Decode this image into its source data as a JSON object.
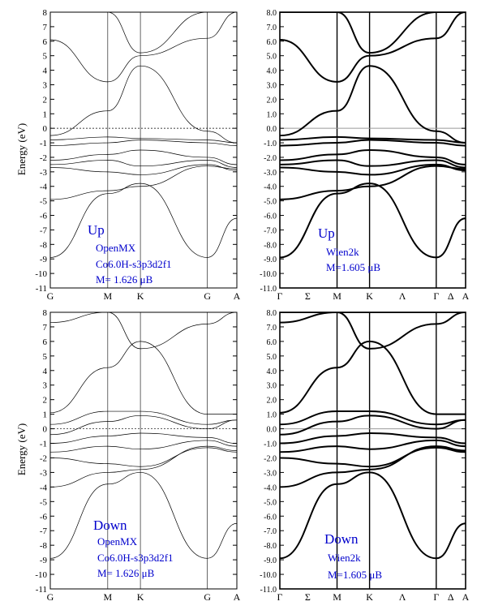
{
  "figure": {
    "ylabel": "Energy (eV)",
    "panels": [
      {
        "id": "openmx-up",
        "style": "openmx",
        "yticks": [
          "-11",
          "-10",
          "-9",
          "-8",
          "-7",
          "-6",
          "-5",
          "-4",
          "-3",
          "-2",
          "-1",
          "0",
          "1",
          "2",
          "3",
          "4",
          "5",
          "6",
          "7",
          "8"
        ],
        "xticks": [
          "G",
          "M",
          "K",
          "G",
          "A"
        ],
        "xtick_pos": [
          0,
          0.308,
          0.483,
          0.842,
          1.0
        ],
        "annotations": [
          "Up",
          "OpenMX",
          "Co6.0H-s3p3d2f1",
          "M= 1.626 μB"
        ]
      },
      {
        "id": "wien2k-up",
        "style": "wien2k",
        "yticks": [
          "-11.0",
          "-10.0",
          "-9.0",
          "-8.0",
          "-7.0",
          "-6.0",
          "-5.0",
          "-4.0",
          "-3.0",
          "-2.0",
          "-1.0",
          "0.0",
          "1.0",
          "2.0",
          "3.0",
          "4.0",
          "5.0",
          "6.0",
          "7.0",
          "8.0"
        ],
        "xticks": [
          "Γ",
          "Σ",
          "M",
          "K",
          "Λ",
          "Γ",
          "Δ",
          "A"
        ],
        "xtick_pos": [
          0,
          0.15,
          0.308,
          0.483,
          0.66,
          0.842,
          0.92,
          1.0
        ],
        "annotations": [
          "Up",
          "Wien2k",
          "M=1.605 μB"
        ]
      },
      {
        "id": "openmx-down",
        "style": "openmx",
        "yticks": [
          "-11",
          "-10",
          "-9",
          "-8",
          "-7",
          "-6",
          "-5",
          "-4",
          "-3",
          "-2",
          "-1",
          "0",
          "1",
          "2",
          "3",
          "4",
          "5",
          "6",
          "7",
          "8"
        ],
        "xticks": [
          "G",
          "M",
          "K",
          "G",
          "A"
        ],
        "xtick_pos": [
          0,
          0.308,
          0.483,
          0.842,
          1.0
        ],
        "annotations": [
          "Down",
          "OpenMX",
          "Co6.0H-s3p3d2f1",
          "M= 1.626 μB"
        ]
      },
      {
        "id": "wien2k-down",
        "style": "wien2k",
        "yticks": [
          "-11.0",
          "-10.0",
          "-9.0",
          "-8.0",
          "-7.0",
          "-6.0",
          "-5.0",
          "-4.0",
          "-3.0",
          "-2.0",
          "-1.0",
          "0.0",
          "1.0",
          "2.0",
          "3.0",
          "4.0",
          "5.0",
          "6.0",
          "7.0",
          "8.0"
        ],
        "xticks": [
          "Γ",
          "Σ",
          "M",
          "K",
          "Λ",
          "Γ",
          "Δ",
          "A"
        ],
        "xtick_pos": [
          0,
          0.15,
          0.308,
          0.483,
          0.66,
          0.842,
          0.92,
          1.0
        ],
        "annotations": [
          "Down",
          "Wien2k",
          "M=1.605 μB"
        ]
      }
    ]
  },
  "chart_data": [
    {
      "type": "line",
      "ylim": [
        -11,
        8
      ],
      "x": [
        0,
        0.308,
        0.483,
        0.842,
        1.0
      ],
      "series": [
        {
          "values": [
            -8.9,
            -4.5,
            -3.8,
            -8.9,
            -6.2
          ]
        },
        {
          "values": [
            -4.9,
            -4.3,
            -4.0,
            -2.6,
            -2.8
          ]
        },
        {
          "values": [
            -2.7,
            -3.0,
            -3.2,
            -2.5,
            -2.9
          ]
        },
        {
          "values": [
            -2.5,
            -2.2,
            -2.6,
            -2.2,
            -2.7
          ]
        },
        {
          "values": [
            -2.2,
            -1.8,
            -1.5,
            -2.0,
            -2.5
          ]
        },
        {
          "values": [
            -1.2,
            -1.0,
            -0.8,
            -1.0,
            -1.2
          ]
        },
        {
          "values": [
            -0.8,
            -0.6,
            -0.7,
            -0.8,
            -1.0
          ]
        },
        {
          "values": [
            -0.5,
            1.2,
            4.3,
            -0.2,
            -1.0
          ]
        },
        {
          "values": [
            6.1,
            3.2,
            5.0,
            6.2,
            8.0
          ]
        },
        {
          "values": [
            8.0,
            8.0,
            5.2,
            8.0,
            8.0
          ]
        }
      ]
    },
    {
      "type": "line",
      "ylim": [
        -11,
        8
      ],
      "x": [
        0,
        0.308,
        0.483,
        0.842,
        1.0
      ],
      "series": [
        {
          "values": [
            -8.9,
            -4.5,
            -3.8,
            -8.9,
            -6.2
          ]
        },
        {
          "values": [
            -4.9,
            -4.3,
            -4.0,
            -2.6,
            -2.8
          ]
        },
        {
          "values": [
            -2.7,
            -3.0,
            -3.2,
            -2.5,
            -2.9
          ]
        },
        {
          "values": [
            -2.5,
            -2.2,
            -2.6,
            -2.2,
            -2.7
          ]
        },
        {
          "values": [
            -2.2,
            -1.8,
            -1.5,
            -2.0,
            -2.5
          ]
        },
        {
          "values": [
            -1.2,
            -1.0,
            -0.8,
            -1.0,
            -1.2
          ]
        },
        {
          "values": [
            -0.8,
            -0.6,
            -0.7,
            -0.8,
            -1.0
          ]
        },
        {
          "values": [
            -0.5,
            1.2,
            4.3,
            -0.2,
            -1.0
          ]
        },
        {
          "values": [
            6.1,
            3.2,
            5.0,
            6.2,
            8.0
          ]
        },
        {
          "values": [
            8.0,
            8.0,
            5.2,
            8.0,
            8.0
          ]
        }
      ]
    },
    {
      "type": "line",
      "ylim": [
        -11,
        8
      ],
      "x": [
        0,
        0.308,
        0.483,
        0.842,
        1.0
      ],
      "series": [
        {
          "values": [
            -8.9,
            -3.8,
            -3.0,
            -8.9,
            -6.5
          ]
        },
        {
          "values": [
            -4.0,
            -3.0,
            -2.8,
            -1.2,
            -1.5
          ]
        },
        {
          "values": [
            -2.0,
            -2.4,
            -2.6,
            -1.3,
            -1.6
          ]
        },
        {
          "values": [
            -1.6,
            -1.2,
            -1.4,
            -0.8,
            -1.2
          ]
        },
        {
          "values": [
            -1.0,
            -0.5,
            -0.3,
            -0.6,
            -1.0
          ]
        },
        {
          "values": [
            -0.4,
            0.5,
            0.9,
            0.0,
            0.6
          ]
        },
        {
          "values": [
            0.3,
            1.2,
            1.2,
            0.3,
            0.6
          ]
        },
        {
          "values": [
            1.1,
            4.2,
            6.0,
            1.0,
            1.0
          ]
        },
        {
          "values": [
            7.3,
            8.0,
            5.5,
            7.2,
            8.0
          ]
        },
        {
          "values": [
            8.0,
            8.0,
            8.0,
            8.0,
            8.0
          ]
        }
      ]
    },
    {
      "type": "line",
      "ylim": [
        -11,
        8
      ],
      "x": [
        0,
        0.308,
        0.483,
        0.842,
        1.0
      ],
      "series": [
        {
          "values": [
            -8.9,
            -3.8,
            -3.0,
            -8.9,
            -6.5
          ]
        },
        {
          "values": [
            -4.0,
            -3.0,
            -2.8,
            -1.2,
            -1.5
          ]
        },
        {
          "values": [
            -2.0,
            -2.4,
            -2.6,
            -1.3,
            -1.6
          ]
        },
        {
          "values": [
            -1.6,
            -1.2,
            -1.4,
            -0.8,
            -1.2
          ]
        },
        {
          "values": [
            -1.0,
            -0.5,
            -0.3,
            -0.6,
            -1.0
          ]
        },
        {
          "values": [
            -0.4,
            0.5,
            0.9,
            0.0,
            0.6
          ]
        },
        {
          "values": [
            0.3,
            1.2,
            1.2,
            0.3,
            0.6
          ]
        },
        {
          "values": [
            1.1,
            4.2,
            6.0,
            1.0,
            1.0
          ]
        },
        {
          "values": [
            7.3,
            8.0,
            5.5,
            7.2,
            8.0
          ]
        },
        {
          "values": [
            8.0,
            8.0,
            8.0,
            8.0,
            8.0
          ]
        }
      ]
    }
  ]
}
